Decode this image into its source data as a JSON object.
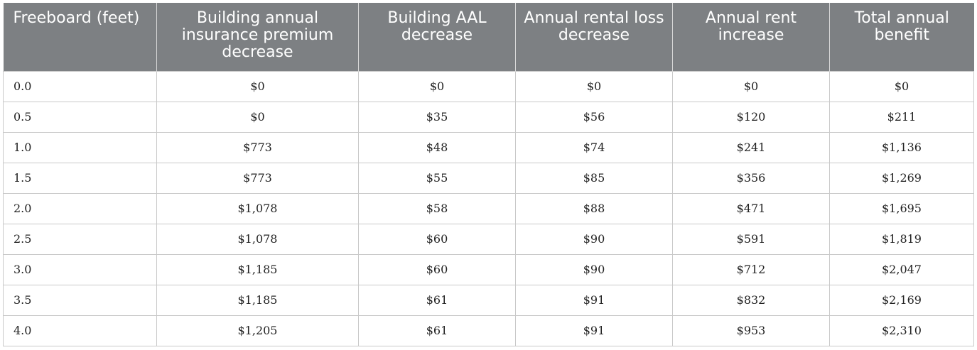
{
  "table": {
    "headers": [
      "Freeboard (feet)",
      "Building annual insurance premium decrease",
      "Building AAL decrease",
      "Annual rental loss decrease",
      "Annual rent increase",
      "Total annual benefit"
    ],
    "rows": [
      [
        "0.0",
        "$0",
        "$0",
        "$0",
        "$0",
        "$0"
      ],
      [
        "0.5",
        "$0",
        "$35",
        "$56",
        "$120",
        "$211"
      ],
      [
        "1.0",
        "$773",
        "$48",
        "$74",
        "$241",
        "$1,136"
      ],
      [
        "1.5",
        "$773",
        "$55",
        "$85",
        "$356",
        "$1,269"
      ],
      [
        "2.0",
        "$1,078",
        "$58",
        "$88",
        "$471",
        "$1,695"
      ],
      [
        "2.5",
        "$1,078",
        "$60",
        "$90",
        "$591",
        "$1,819"
      ],
      [
        "3.0",
        "$1,185",
        "$60",
        "$90",
        "$712",
        "$2,047"
      ],
      [
        "3.5",
        "$1,185",
        "$61",
        "$91",
        "$832",
        "$2,169"
      ],
      [
        "4.0",
        "$1,205",
        "$61",
        "$91",
        "$953",
        "$2,310"
      ]
    ]
  },
  "colors": {
    "header_background": "#7d8083",
    "header_text": "#ffffff",
    "grid_line": "#c9c9c9"
  }
}
